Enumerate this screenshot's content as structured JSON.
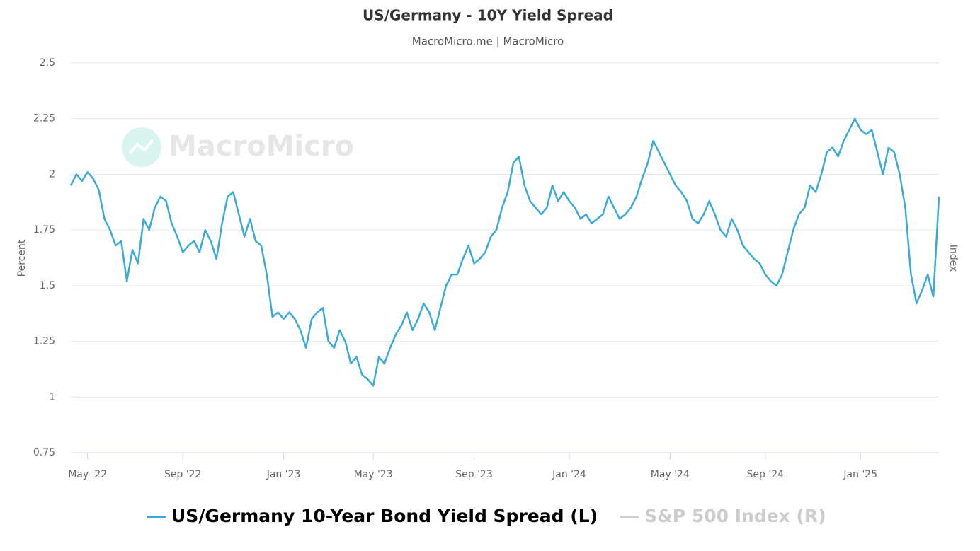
{
  "chart_data": {
    "type": "line",
    "title": "US/Germany - 10Y Yield Spread",
    "subtitle": "MacroMicro.me | MacroMicro",
    "watermark": "MacroMicro",
    "ylabel": "Percent",
    "y2label": "Index",
    "categories": [
      null,
      null,
      null,
      "May '22",
      null,
      null,
      null,
      null,
      null,
      null,
      null,
      null,
      null,
      null,
      null,
      null,
      null,
      null,
      null,
      null,
      "Sep '22",
      null,
      null,
      null,
      null,
      null,
      null,
      null,
      null,
      null,
      null,
      null,
      null,
      null,
      null,
      null,
      null,
      null,
      "Jan '23",
      null,
      null,
      null,
      null,
      null,
      null,
      null,
      null,
      null,
      null,
      null,
      null,
      null,
      null,
      null,
      "May '23",
      null,
      null,
      null,
      null,
      null,
      null,
      null,
      null,
      null,
      null,
      null,
      null,
      null,
      null,
      null,
      null,
      null,
      "Sep '23",
      null,
      null,
      null,
      null,
      null,
      null,
      null,
      null,
      null,
      null,
      null,
      null,
      null,
      null,
      null,
      null,
      "Jan '24",
      null,
      null,
      null,
      null,
      null,
      null,
      null,
      null,
      null,
      null,
      null,
      null,
      null,
      null,
      null,
      null,
      null,
      "May '24",
      null,
      null,
      null,
      null,
      null,
      null,
      null,
      null,
      null,
      null,
      null,
      null,
      null,
      null,
      null,
      null,
      "Sep '24",
      null,
      null,
      null,
      null,
      null,
      null,
      null,
      null,
      null,
      null,
      null,
      null,
      null,
      null,
      null,
      null,
      "Jan '25",
      null,
      null,
      null,
      null,
      null,
      null,
      null,
      null,
      null,
      null,
      null,
      null,
      null,
      null
    ],
    "series": [
      {
        "name": "US/Germany 10-Year Bond Yield Spread (L)",
        "color": "#3aaad8",
        "values": [
          1.95,
          2.0,
          1.97,
          2.01,
          1.98,
          1.93,
          1.8,
          1.75,
          1.68,
          1.7,
          1.52,
          1.66,
          1.6,
          1.8,
          1.75,
          1.85,
          1.9,
          1.88,
          1.78,
          1.72,
          1.65,
          1.68,
          1.7,
          1.65,
          1.75,
          1.7,
          1.62,
          1.78,
          1.9,
          1.92,
          1.82,
          1.72,
          1.8,
          1.7,
          1.68,
          1.55,
          1.36,
          1.38,
          1.35,
          1.38,
          1.35,
          1.3,
          1.22,
          1.35,
          1.38,
          1.4,
          1.25,
          1.22,
          1.3,
          1.25,
          1.15,
          1.18,
          1.1,
          1.08,
          1.05,
          1.18,
          1.15,
          1.22,
          1.28,
          1.32,
          1.38,
          1.3,
          1.35,
          1.42,
          1.38,
          1.3,
          1.4,
          1.5,
          1.55,
          1.55,
          1.62,
          1.68,
          1.6,
          1.62,
          1.65,
          1.72,
          1.75,
          1.85,
          1.92,
          2.05,
          2.08,
          1.95,
          1.88,
          1.85,
          1.82,
          1.85,
          1.95,
          1.88,
          1.92,
          1.88,
          1.85,
          1.8,
          1.82,
          1.78,
          1.8,
          1.82,
          1.9,
          1.85,
          1.8,
          1.82,
          1.85,
          1.9,
          1.98,
          2.05,
          2.15,
          2.1,
          2.05,
          2.0,
          1.95,
          1.92,
          1.88,
          1.8,
          1.78,
          1.82,
          1.88,
          1.82,
          1.75,
          1.72,
          1.8,
          1.75,
          1.68,
          1.65,
          1.62,
          1.6,
          1.55,
          1.52,
          1.5,
          1.55,
          1.65,
          1.75,
          1.82,
          1.85,
          1.95,
          1.92,
          2.0,
          2.1,
          2.12,
          2.08,
          2.15,
          2.2,
          2.25,
          2.2,
          2.18,
          2.2,
          2.1,
          2.0,
          2.12,
          2.1,
          2.0,
          1.85,
          1.55,
          1.42,
          1.48,
          1.55,
          1.45,
          1.9
        ]
      },
      {
        "name": "S&P 500 Index (R)",
        "color": "#cccccc",
        "axis": "y2",
        "visible": false
      }
    ],
    "ylim": [
      0.75,
      2.5
    ],
    "yticks": [
      0.75,
      1,
      1.25,
      1.5,
      1.75,
      2,
      2.25,
      2.5
    ],
    "grid": true
  }
}
